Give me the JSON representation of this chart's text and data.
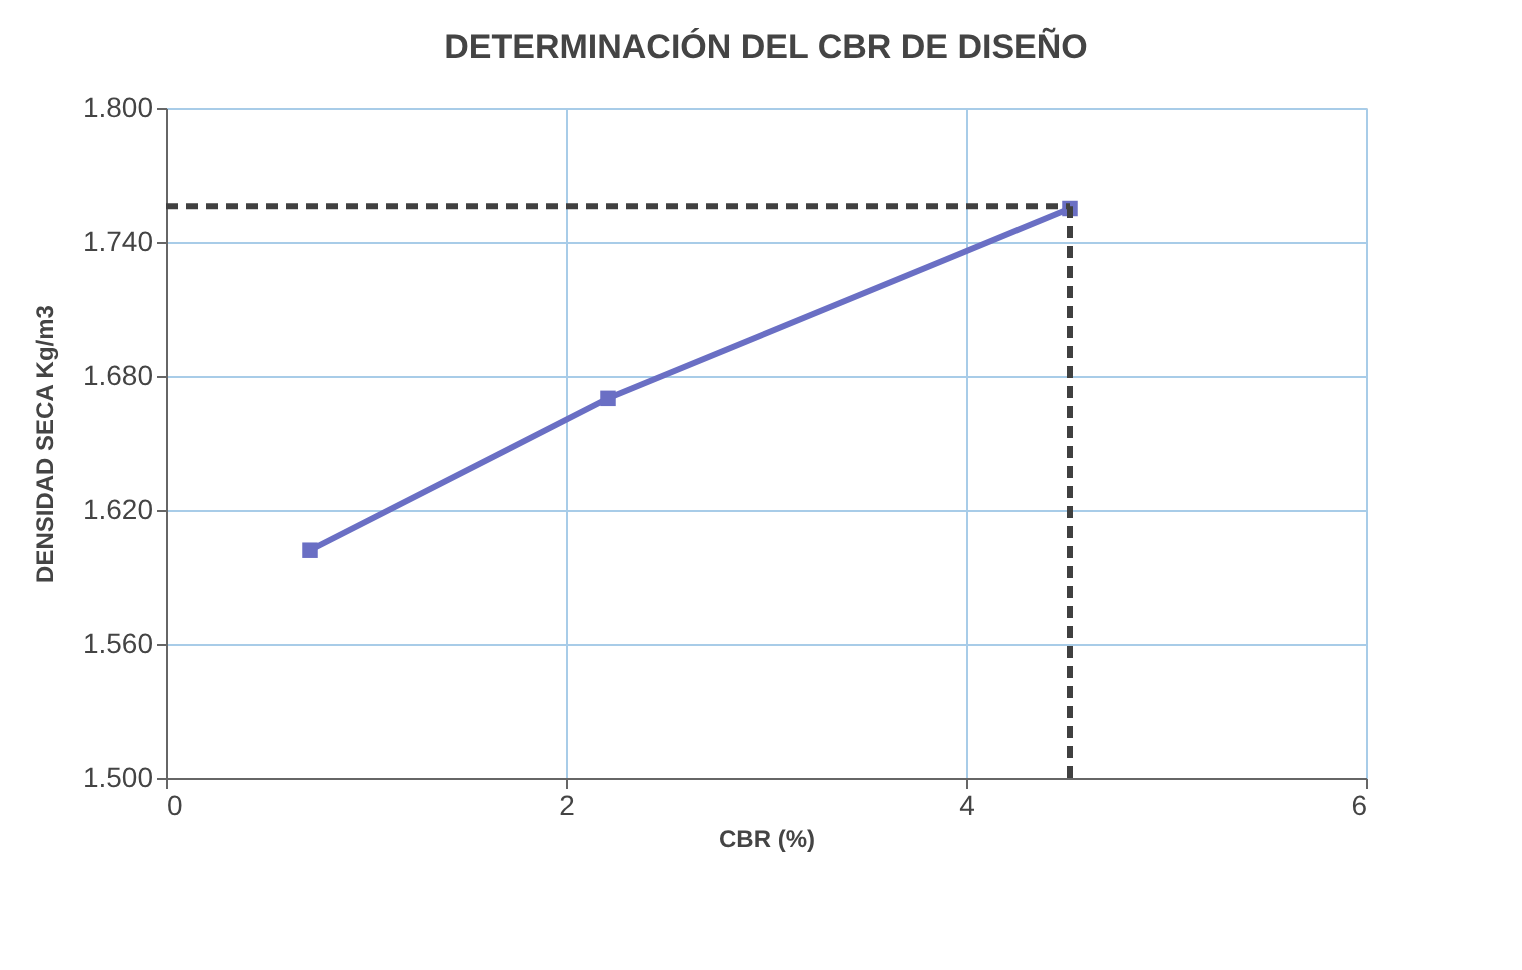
{
  "chart_data": {
    "type": "line",
    "title": "DETERMINACIÓN DEL CBR DE DISEÑO",
    "xlabel": "CBR (%)",
    "ylabel": "DENSIDAD SECA Kg/m3",
    "x": [
      0.72,
      2.21,
      4.52
    ],
    "series": [
      {
        "color": "#6a6fc4",
        "values": [
          1.602,
          1.67,
          1.755
        ]
      }
    ],
    "xlim": [
      0,
      6
    ],
    "xticks": [
      0,
      2,
      4,
      6
    ],
    "ylim": [
      1.5,
      1.8
    ],
    "yticks": [
      {
        "value": 1.5,
        "label": "1.500"
      },
      {
        "value": 1.56,
        "label": "1.560"
      },
      {
        "value": 1.62,
        "label": "1.620"
      },
      {
        "value": 1.68,
        "label": "1.680"
      },
      {
        "value": 1.74,
        "label": "1.740"
      },
      {
        "value": 1.8,
        "label": "1.800"
      }
    ],
    "ref_lines": [
      {
        "axis": "y",
        "value": 1.756,
        "color": "#404040",
        "line_style": "dashed"
      },
      {
        "axis": "x",
        "value": 4.52,
        "color": "#404040",
        "line_style": "dashed"
      }
    ],
    "grid": true,
    "marker": "square",
    "line_style": "solid"
  }
}
